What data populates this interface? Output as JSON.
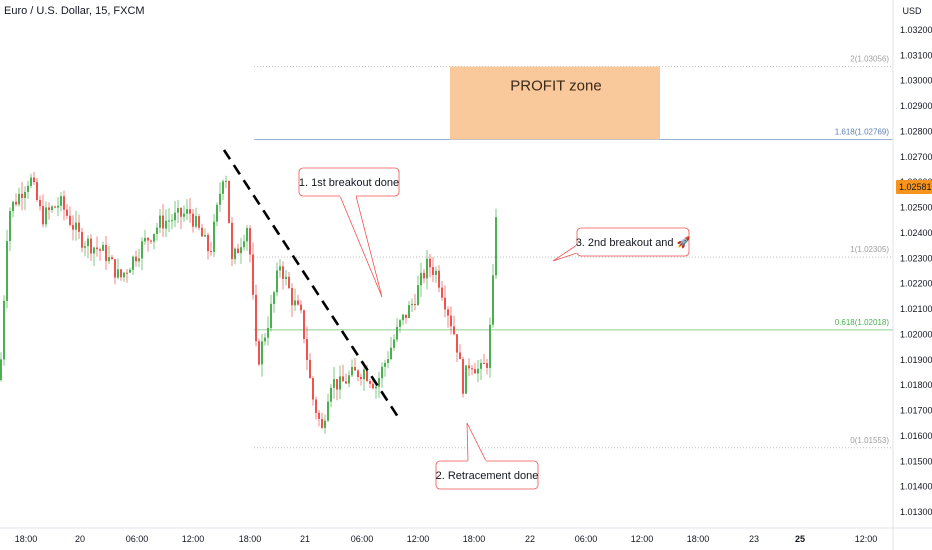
{
  "header": {
    "symbol_title": "Euro / U.S. Dollar, 15, FXCM"
  },
  "chart_data": {
    "type": "candlestick",
    "currency_label": "USD",
    "y_ticks": [
      "1.03200",
      "1.03100",
      "1.03000",
      "1.02900",
      "1.02800",
      "1.02700",
      "1.02600",
      "1.02500",
      "1.02400",
      "1.02300",
      "1.02200",
      "1.02100",
      "1.02000",
      "1.01900",
      "1.01800",
      "1.01700",
      "1.01600",
      "1.01500",
      "1.01400",
      "1.01300"
    ],
    "y_tick_values": [
      1.032,
      1.031,
      1.03,
      1.029,
      1.028,
      1.027,
      1.026,
      1.025,
      1.024,
      1.023,
      1.022,
      1.021,
      1.02,
      1.019,
      1.018,
      1.017,
      1.016,
      1.015,
      1.014,
      1.013
    ],
    "ylim": [
      1.0126,
      1.033
    ],
    "x_ticks": [
      "18:00",
      "20",
      "06:00",
      "12:00",
      "18:00",
      "21",
      "06:00",
      "12:00",
      "18:00",
      "22",
      "06:00",
      "12:00",
      "18:00",
      "23",
      "25",
      "12:00"
    ],
    "x_tick_bold": [
      false,
      false,
      false,
      false,
      false,
      false,
      false,
      false,
      false,
      false,
      false,
      false,
      false,
      false,
      true,
      false
    ],
    "current_price": {
      "value": 1.02581,
      "label": "1.02581",
      "color": "#f7941d"
    },
    "fib_levels": [
      {
        "label": "2(1.03056)",
        "value": 1.03056,
        "color": "#9e9e9e"
      },
      {
        "label": "1.618(1.02769)",
        "value": 1.02769,
        "color": "#5b7fb5"
      },
      {
        "label": "1(1.02305)",
        "value": 1.02305,
        "color": "#9e9e9e"
      },
      {
        "label": "0.618(1.02018)",
        "value": 1.02018,
        "color": "#4caf50"
      },
      {
        "label": "0(1.01553)",
        "value": 1.01553,
        "color": "#9e9e9e"
      }
    ],
    "profit_zone": {
      "label": "PROFIT zone",
      "top": 1.03056,
      "bottom": 1.02769,
      "color": "#f9c89b"
    },
    "callouts": [
      {
        "label": "1. 1st breakout done"
      },
      {
        "label": "2. Retracement done"
      },
      {
        "label": "3. 2nd breakout and 🚀"
      }
    ],
    "up_color": "#26a69a",
    "up_color_display": "#4caf50",
    "down_color": "#ef5350",
    "trendline_color": "#000000"
  }
}
